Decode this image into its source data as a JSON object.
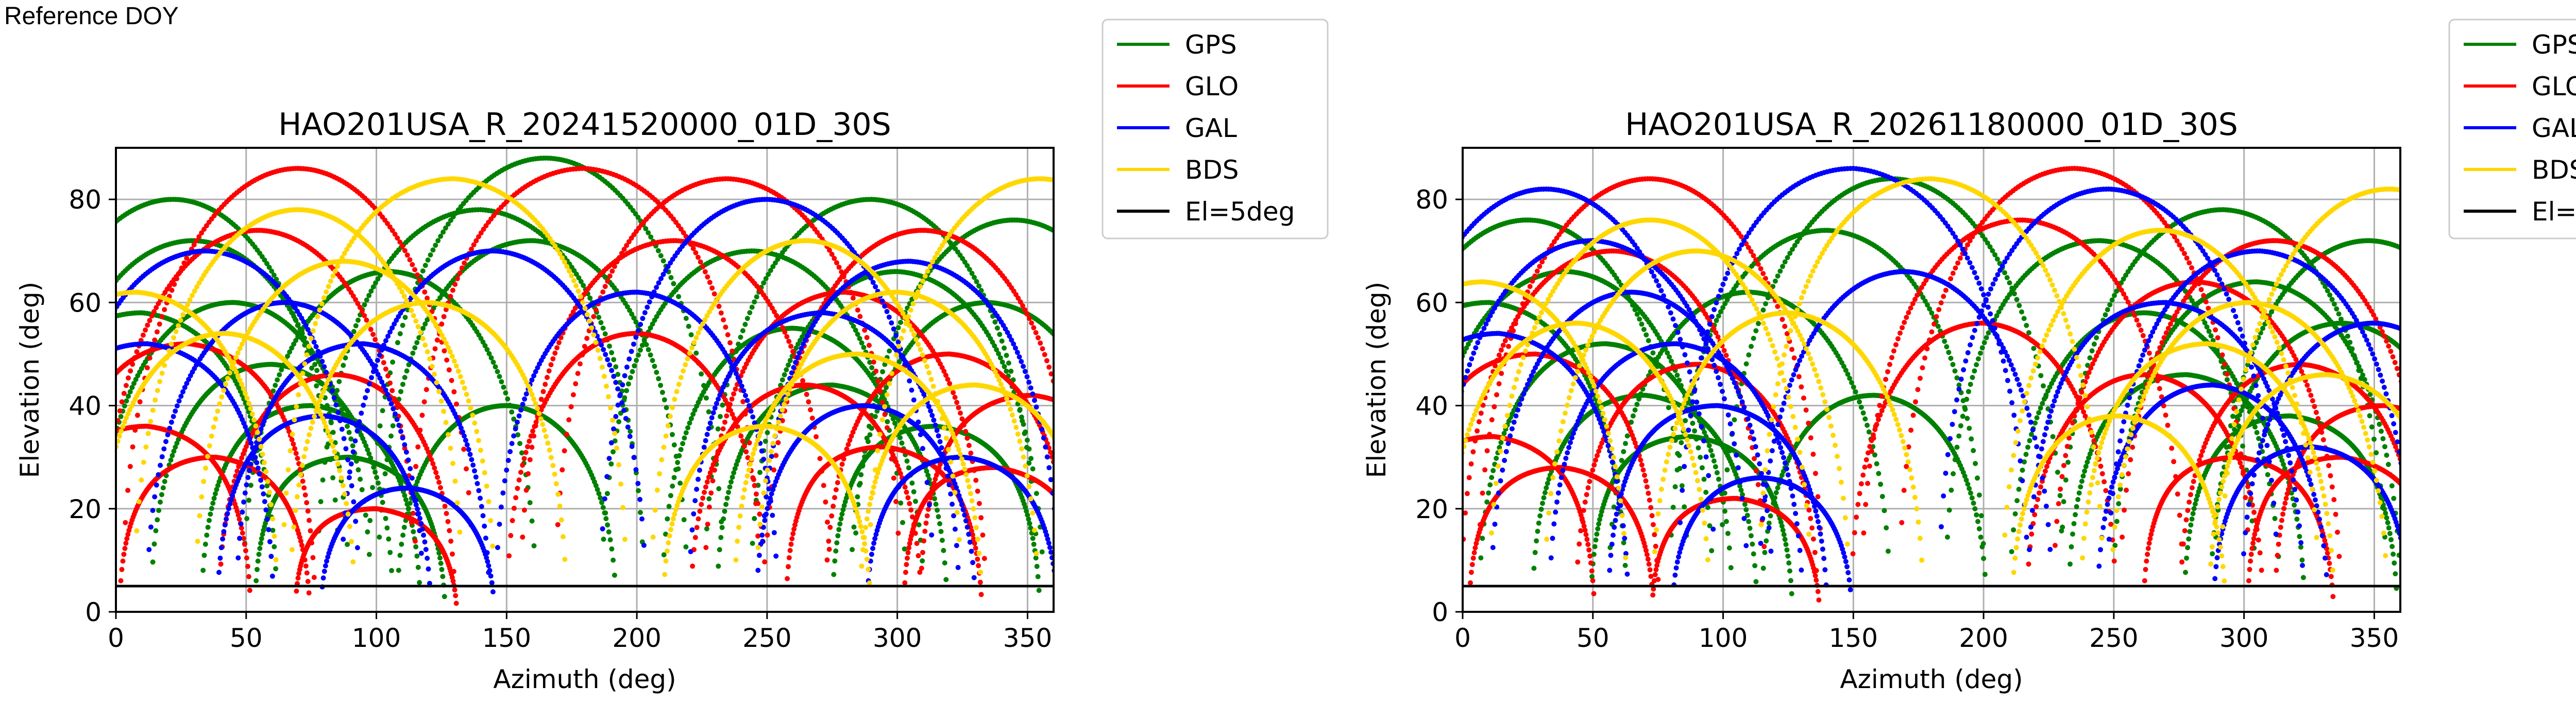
{
  "header": {
    "reference_label": "Reference DOY"
  },
  "colors": {
    "GPS": "#008000",
    "GLO": "#ff0000",
    "GAL": "#0000ff",
    "BDS": "#ffd700",
    "mask": "#000000"
  },
  "chart_data": [
    {
      "type": "scatter",
      "title": "HAO201USA_R_20241520000_01D_30S",
      "xlabel": "Azimuth (deg)",
      "ylabel": "Elevation (deg)",
      "xlim": [
        0,
        360
      ],
      "ylim": [
        0,
        90
      ],
      "xticks": [
        0,
        50,
        100,
        150,
        200,
        250,
        300,
        350
      ],
      "yticks": [
        0,
        20,
        40,
        60,
        80
      ],
      "grid": true,
      "legend_position": "outside-top-right",
      "legend": [
        "GPS",
        "GLO",
        "GAL",
        "BDS",
        "El=5deg"
      ],
      "mask_line": {
        "name": "El=5deg",
        "y": 5
      },
      "series": [
        {
          "name": "GPS",
          "arcs": [
            [
              10,
              58,
              28
            ],
            [
              22,
              80,
              2
            ],
            [
              30,
              72,
              12
            ],
            [
              45,
              60,
              8
            ],
            [
              60,
              48,
              14
            ],
            [
              75,
              40,
              20
            ],
            [
              90,
              30,
              26
            ],
            [
              105,
              66,
              4
            ],
            [
              140,
              78,
              18
            ],
            [
              150,
              40,
              8
            ],
            [
              160,
              72,
              16
            ],
            [
              165,
              88,
              2
            ],
            [
              245,
              70,
              16
            ],
            [
              260,
              55,
              10
            ],
            [
              275,
              44,
              22
            ],
            [
              290,
              80,
              8
            ],
            [
              300,
              66,
              14
            ],
            [
              315,
              36,
              26
            ],
            [
              335,
              60,
              12
            ],
            [
              345,
              76,
              4
            ]
          ]
        },
        {
          "name": "GLO",
          "arcs": [
            [
              12,
              36,
              26
            ],
            [
              28,
              52,
              32
            ],
            [
              38,
              30,
              20
            ],
            [
              55,
              74,
              10
            ],
            [
              70,
              86,
              4
            ],
            [
              85,
              46,
              12
            ],
            [
              100,
              20,
              20
            ],
            [
              180,
              86,
              22
            ],
            [
              200,
              54,
              10
            ],
            [
              215,
              72,
              20
            ],
            [
              235,
              84,
              14
            ],
            [
              265,
              44,
              10
            ],
            [
              280,
              62,
              18
            ],
            [
              295,
              32,
              26
            ],
            [
              310,
              74,
              6
            ],
            [
              320,
              50,
              16
            ],
            [
              338,
              28,
              30
            ],
            [
              352,
              42,
              28
            ]
          ]
        },
        {
          "name": "GAL",
          "arcs": [
            [
              12,
              52,
              30
            ],
            [
              35,
              70,
              14
            ],
            [
              65,
              60,
              6
            ],
            [
              80,
              38,
              18
            ],
            [
              95,
              52,
              24
            ],
            [
              112,
              24,
              8
            ],
            [
              145,
              70,
              10
            ],
            [
              200,
              62,
              14
            ],
            [
              250,
              80,
              10
            ],
            [
              272,
              58,
              26
            ],
            [
              288,
              40,
              12
            ],
            [
              305,
              68,
              20
            ],
            [
              325,
              30,
              16
            ]
          ]
        },
        {
          "name": "BDS",
          "arcs": [
            [
              8,
              62,
              20
            ],
            [
              42,
              54,
              10
            ],
            [
              70,
              78,
              2
            ],
            [
              88,
              68,
              8
            ],
            [
              120,
              60,
              16
            ],
            [
              130,
              84,
              24
            ],
            [
              250,
              36,
              14
            ],
            [
              265,
              72,
              4
            ],
            [
              285,
              50,
              20
            ],
            [
              300,
              62,
              10
            ],
            [
              330,
              44,
              18
            ],
            [
              355,
              84,
              6
            ]
          ]
        }
      ]
    },
    {
      "type": "scatter",
      "title": "HAO201USA_R_20261180000_01D_30S",
      "xlabel": "Azimuth (deg)",
      "ylabel": "Elevation (deg)",
      "xlim": [
        0,
        360
      ],
      "ylim": [
        0,
        90
      ],
      "xticks": [
        0,
        50,
        100,
        150,
        200,
        250,
        300,
        350
      ],
      "yticks": [
        0,
        20,
        40,
        60,
        80
      ],
      "grid": true,
      "legend_position": "outside-top-right",
      "legend": [
        "GPS",
        "GLO",
        "GAL",
        "BDS",
        "El=5deg"
      ],
      "mask_line": {
        "name": "El=5deg",
        "y": 5
      },
      "series": [
        {
          "name": "GPS",
          "arcs": [
            [
              10,
              60,
              26
            ],
            [
              25,
              76,
              4
            ],
            [
              40,
              66,
              12
            ],
            [
              55,
              52,
              16
            ],
            [
              70,
              42,
              22
            ],
            [
              88,
              34,
              28
            ],
            [
              110,
              62,
              6
            ],
            [
              140,
              74,
              14
            ],
            [
              158,
              42,
              10
            ],
            [
              165,
              84,
              4
            ],
            [
              245,
              72,
              18
            ],
            [
              262,
              58,
              8
            ],
            [
              278,
              46,
              22
            ],
            [
              292,
              78,
              10
            ],
            [
              305,
              64,
              16
            ],
            [
              318,
              38,
              26
            ],
            [
              338,
              56,
              12
            ],
            [
              348,
              72,
              6
            ]
          ]
        },
        {
          "name": "GLO",
          "arcs": [
            [
              12,
              34,
              28
            ],
            [
              28,
              50,
              32
            ],
            [
              38,
              28,
              20
            ],
            [
              58,
              70,
              12
            ],
            [
              72,
              84,
              6
            ],
            [
              90,
              48,
              14
            ],
            [
              105,
              22,
              18
            ],
            [
              200,
              56,
              12
            ],
            [
              215,
              76,
              18
            ],
            [
              235,
              86,
              12
            ],
            [
              262,
              46,
              10
            ],
            [
              282,
              64,
              18
            ],
            [
              298,
              30,
              26
            ],
            [
              312,
              72,
              8
            ],
            [
              322,
              48,
              16
            ],
            [
              338,
              30,
              30
            ],
            [
              354,
              40,
              28
            ]
          ]
        },
        {
          "name": "GAL",
          "arcs": [
            [
              14,
              54,
              30
            ],
            [
              32,
              82,
              4
            ],
            [
              50,
              72,
              14
            ],
            [
              65,
              62,
              6
            ],
            [
              82,
              52,
              20
            ],
            [
              98,
              40,
              24
            ],
            [
              115,
              26,
              8
            ],
            [
              150,
              86,
              24
            ],
            [
              170,
              66,
              10
            ],
            [
              248,
              82,
              12
            ],
            [
              270,
              60,
              26
            ],
            [
              288,
              44,
              14
            ],
            [
              306,
              70,
              20
            ],
            [
              326,
              32,
              16
            ],
            [
              350,
              56,
              10
            ]
          ]
        },
        {
          "name": "BDS",
          "arcs": [
            [
              8,
              64,
              20
            ],
            [
              44,
              56,
              10
            ],
            [
              72,
              76,
              2
            ],
            [
              90,
              70,
              8
            ],
            [
              125,
              58,
              14
            ],
            [
              180,
              84,
              22
            ],
            [
              252,
              38,
              14
            ],
            [
              268,
              74,
              4
            ],
            [
              286,
              52,
              20
            ],
            [
              302,
              60,
              10
            ],
            [
              332,
              46,
              18
            ],
            [
              356,
              82,
              6
            ]
          ]
        }
      ]
    }
  ]
}
